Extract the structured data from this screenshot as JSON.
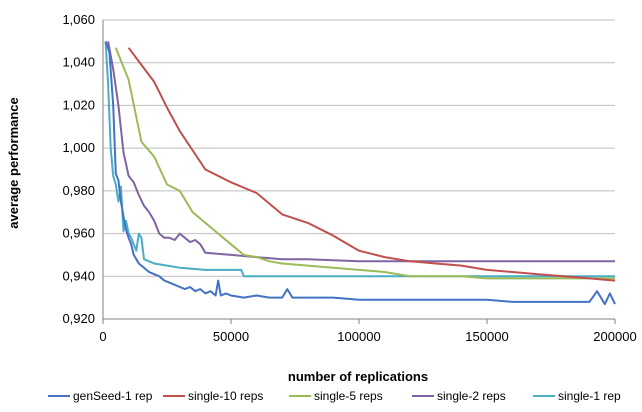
{
  "chart_data": {
    "type": "line",
    "title": "",
    "xlabel": "number of replications",
    "ylabel": "average performance",
    "xlim": [
      0,
      200000
    ],
    "ylim": [
      0.92,
      1.06
    ],
    "x_ticks": [
      0,
      50000,
      100000,
      150000,
      200000
    ],
    "x_tick_labels": [
      "0",
      "50000",
      "100000",
      "150000",
      "200000"
    ],
    "y_ticks": [
      0.92,
      0.94,
      0.96,
      0.98,
      1.0,
      1.02,
      1.04,
      1.06
    ],
    "y_tick_labels": [
      "0,920",
      "0,940",
      "0,960",
      "0,980",
      "1,000",
      "1,020",
      "1,040",
      "1,060"
    ],
    "grid": "horizontal",
    "legend_position": "bottom",
    "series": [
      {
        "name": "genSeed-1 rep",
        "color": "#4472C4",
        "x": [
          1000,
          2500,
          4000,
          5000,
          6000,
          7000,
          8000,
          9000,
          10000,
          11000,
          12000,
          13000,
          14000,
          15000,
          16000,
          17000,
          18000,
          20000,
          22000,
          24000,
          26000,
          28000,
          30000,
          32000,
          34000,
          36000,
          38000,
          40000,
          42000,
          44000,
          45000,
          46000,
          48000,
          50000,
          55000,
          60000,
          65000,
          70000,
          72000,
          74000,
          80000,
          90000,
          100000,
          110000,
          120000,
          130000,
          140000,
          150000,
          160000,
          170000,
          180000,
          190000,
          193000,
          196000,
          198000,
          200000
        ],
        "y": [
          1.05,
          1.045,
          1.02,
          0.988,
          0.985,
          0.975,
          0.968,
          0.962,
          0.958,
          0.955,
          0.95,
          0.948,
          0.946,
          0.945,
          0.944,
          0.943,
          0.942,
          0.941,
          0.94,
          0.938,
          0.937,
          0.936,
          0.935,
          0.934,
          0.935,
          0.933,
          0.934,
          0.932,
          0.933,
          0.931,
          0.938,
          0.931,
          0.932,
          0.931,
          0.93,
          0.931,
          0.93,
          0.93,
          0.934,
          0.93,
          0.93,
          0.93,
          0.929,
          0.929,
          0.929,
          0.929,
          0.929,
          0.929,
          0.928,
          0.928,
          0.928,
          0.928,
          0.933,
          0.927,
          0.932,
          0.927
        ]
      },
      {
        "name": "single-10 reps",
        "color": "#C0504D",
        "x": [
          10000,
          15000,
          20000,
          25000,
          30000,
          40000,
          50000,
          60000,
          70000,
          80000,
          90000,
          100000,
          110000,
          120000,
          130000,
          140000,
          150000,
          160000,
          170000,
          180000,
          190000,
          200000
        ],
        "y": [
          1.047,
          1.039,
          1.031,
          1.019,
          1.008,
          0.99,
          0.984,
          0.979,
          0.969,
          0.965,
          0.959,
          0.952,
          0.949,
          0.947,
          0.946,
          0.945,
          0.943,
          0.942,
          0.941,
          0.94,
          0.939,
          0.938
        ]
      },
      {
        "name": "single-5 reps",
        "color": "#9BBB59",
        "x": [
          5000,
          10000,
          15000,
          20000,
          25000,
          30000,
          35000,
          40000,
          45000,
          50000,
          55000,
          60000,
          65000,
          70000,
          80000,
          90000,
          100000,
          110000,
          120000,
          130000,
          140000,
          150000,
          160000,
          170000,
          180000,
          190000,
          200000
        ],
        "y": [
          1.047,
          1.032,
          1.003,
          0.996,
          0.983,
          0.98,
          0.97,
          0.965,
          0.96,
          0.955,
          0.95,
          0.949,
          0.947,
          0.946,
          0.945,
          0.944,
          0.943,
          0.942,
          0.94,
          0.94,
          0.94,
          0.939,
          0.939,
          0.939,
          0.939,
          0.939,
          0.939
        ]
      },
      {
        "name": "single-2 reps",
        "color": "#8064A2",
        "x": [
          2000,
          4000,
          6000,
          8000,
          10000,
          12000,
          14000,
          16000,
          18000,
          20000,
          22000,
          24000,
          26000,
          28000,
          30000,
          32000,
          34000,
          36000,
          38000,
          40000,
          50000,
          60000,
          70000,
          80000,
          100000,
          120000,
          140000,
          160000,
          180000,
          200000
        ],
        "y": [
          1.05,
          1.037,
          1.02,
          0.998,
          0.987,
          0.984,
          0.978,
          0.973,
          0.97,
          0.966,
          0.96,
          0.958,
          0.958,
          0.957,
          0.96,
          0.958,
          0.956,
          0.957,
          0.955,
          0.951,
          0.95,
          0.949,
          0.948,
          0.948,
          0.947,
          0.947,
          0.947,
          0.947,
          0.947,
          0.947
        ]
      },
      {
        "name": "single-1 rep",
        "color": "#4BACC6",
        "x": [
          1000,
          2000,
          3000,
          4000,
          5000,
          6000,
          7000,
          8000,
          9000,
          10000,
          11000,
          12000,
          13000,
          14000,
          15000,
          16000,
          18000,
          20000,
          25000,
          30000,
          40000,
          50000,
          54000,
          55000,
          60000,
          80000,
          100000,
          120000,
          150000,
          170000,
          200000
        ],
        "y": [
          1.05,
          1.03,
          1.0,
          0.987,
          0.983,
          0.975,
          0.982,
          0.961,
          0.966,
          0.96,
          0.958,
          0.955,
          0.952,
          0.96,
          0.958,
          0.948,
          0.947,
          0.946,
          0.945,
          0.944,
          0.943,
          0.943,
          0.943,
          0.94,
          0.94,
          0.94,
          0.94,
          0.94,
          0.94,
          0.94,
          0.94
        ]
      }
    ]
  }
}
